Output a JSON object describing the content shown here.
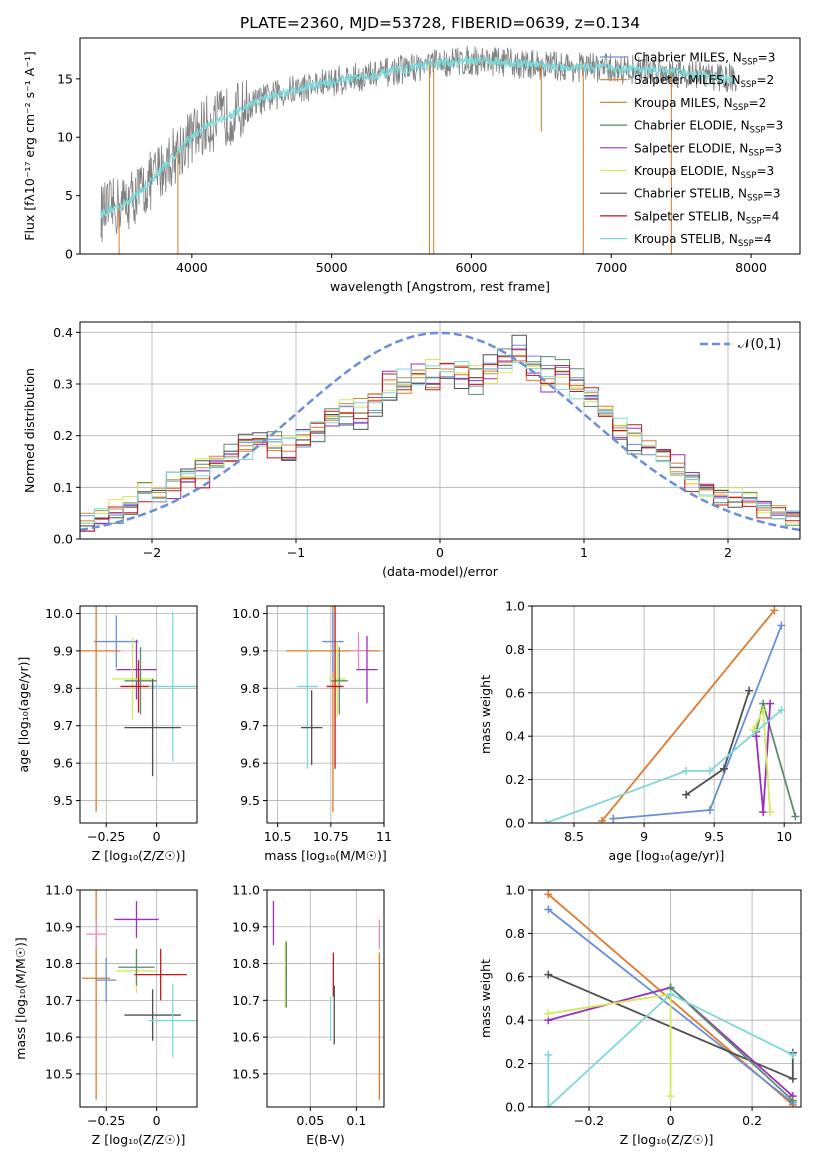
{
  "figure_title": "PLATE=2360, MJD=53728, FIBERID=0639, z=0.134",
  "models": [
    {
      "name": "Chabrier MILES",
      "color": "#6a8fd8",
      "nssp": "3"
    },
    {
      "name": "Salpeter MILES",
      "color": "#e07a2a",
      "nssp": "2"
    },
    {
      "name": "Kroupa MILES",
      "color": "#c09040",
      "nssp": "2"
    },
    {
      "name": "Chabrier ELODIE",
      "color": "#5c8c6e",
      "nssp": "3"
    },
    {
      "name": "Salpeter ELODIE",
      "color": "#9b2fc0",
      "nssp": "3"
    },
    {
      "name": "Kroupa ELODIE",
      "color": "#d6e85c",
      "nssp": "3"
    },
    {
      "name": "Chabrier STELIB",
      "color": "#505050",
      "nssp": "3"
    },
    {
      "name": "Salpeter STELIB",
      "color": "#c41818",
      "nssp": "4"
    },
    {
      "name": "Kroupa STELIB",
      "color": "#7fd8d8",
      "nssp": "4"
    }
  ],
  "chart_data": [
    {
      "id": "spectrum",
      "type": "line",
      "xlabel": "wavelength [Angstrom, rest frame]",
      "ylabel": "Flux [fλ10⁻¹⁷ erg cm⁻² s⁻¹ A⁻¹]",
      "xlim": [
        3200,
        8350
      ],
      "ylim": [
        0,
        18.5
      ],
      "xticks": [
        4000,
        5000,
        6000,
        7000,
        8000
      ],
      "yticks": [
        0,
        5,
        10,
        15
      ],
      "legend_position": "right",
      "observed_color": "#808080",
      "model_color": "#7fd8d8",
      "continuum": {
        "x": [
          3350,
          3500,
          3650,
          3800,
          3950,
          4100,
          4300,
          4500,
          4700,
          4900,
          5100,
          5300,
          5500,
          5700,
          5900,
          6100,
          6300,
          6500,
          6700,
          6900,
          7100,
          7300,
          7500,
          7700,
          7900
        ],
        "y": [
          3.5,
          4.2,
          5.5,
          7.5,
          9.5,
          11.0,
          12.0,
          13.2,
          14.0,
          14.5,
          15.0,
          15.3,
          15.8,
          16.2,
          16.5,
          16.6,
          16.3,
          16.2,
          16.0,
          16.0,
          15.8,
          15.8,
          15.5,
          15.2,
          15.0
        ]
      },
      "spikes_down": [
        [
          3480,
          0
        ],
        [
          3900,
          0
        ],
        [
          5700,
          0
        ],
        [
          5730,
          0
        ],
        [
          6500,
          10.5
        ],
        [
          6800,
          0
        ],
        [
          7430,
          0
        ]
      ]
    },
    {
      "id": "residual_hist",
      "type": "line",
      "xlabel": "(data-model)/error",
      "ylabel": "Normed distribution",
      "xlim": [
        -2.5,
        2.5
      ],
      "ylim": [
        0,
        0.42
      ],
      "xticks": [
        -2,
        -1,
        0,
        1,
        2
      ],
      "yticks": [
        0.0,
        0.1,
        0.2,
        0.3,
        0.4
      ],
      "grid": true,
      "legend_position": "top-right",
      "reference_curve": "𝒩(0,1)",
      "bin_edges_start": -2.5,
      "bin_width": 0.1,
      "series": [
        {
          "values": [
            0.045,
            0.041,
            0.046,
            0.067,
            0.091,
            0.094,
            0.112,
            0.131,
            0.132,
            0.152,
            0.164,
            0.187,
            0.188,
            0.193,
            0.152,
            0.178,
            0.189,
            0.233,
            0.22,
            0.226,
            0.249,
            0.269,
            0.298,
            0.302,
            0.313,
            0.314,
            0.311,
            0.296,
            0.34,
            0.355,
            0.375,
            0.354,
            0.336,
            0.332,
            0.312,
            0.275,
            0.248,
            0.21,
            0.183,
            0.163,
            0.152,
            0.126,
            0.12,
            0.103,
            0.081,
            0.072,
            0.079,
            0.065,
            0.049,
            0.043
          ]
        },
        {
          "values": [
            0.035,
            0.039,
            0.05,
            0.061,
            0.091,
            0.081,
            0.098,
            0.11,
            0.117,
            0.16,
            0.15,
            0.173,
            0.186,
            0.171,
            0.17,
            0.192,
            0.216,
            0.23,
            0.245,
            0.244,
            0.281,
            0.308,
            0.282,
            0.327,
            0.293,
            0.329,
            0.318,
            0.312,
            0.325,
            0.342,
            0.366,
            0.307,
            0.302,
            0.325,
            0.297,
            0.283,
            0.257,
            0.209,
            0.204,
            0.19,
            0.169,
            0.147,
            0.107,
            0.095,
            0.085,
            0.081,
            0.079,
            0.056,
            0.052,
            0.047
          ]
        },
        {
          "values": [
            0.05,
            0.055,
            0.058,
            0.07,
            0.088,
            0.09,
            0.115,
            0.118,
            0.138,
            0.155,
            0.16,
            0.17,
            0.192,
            0.2,
            0.182,
            0.202,
            0.226,
            0.238,
            0.262,
            0.272,
            0.28,
            0.3,
            0.312,
            0.312,
            0.33,
            0.34,
            0.335,
            0.33,
            0.32,
            0.33,
            0.345,
            0.335,
            0.31,
            0.3,
            0.29,
            0.27,
            0.24,
            0.215,
            0.2,
            0.18,
            0.16,
            0.13,
            0.115,
            0.1,
            0.09,
            0.08,
            0.07,
            0.06,
            0.052,
            0.045
          ]
        }
      ]
    },
    {
      "id": "age_vs_Z",
      "type": "scatter",
      "xlabel": "Z [log₁₀(Z/Z☉)]",
      "ylabel": "age  [log₁₀(age/yr)]",
      "xlim": [
        -0.38,
        0.2
      ],
      "ylim": [
        9.44,
        10.02
      ],
      "xticks": [
        -0.25,
        0.0
      ],
      "yticks": [
        9.5,
        9.6,
        9.7,
        9.8,
        9.9,
        10.0
      ],
      "grid": true,
      "points": [
        {
          "x": -0.2,
          "y": 9.925,
          "xerr": 0.11,
          "yerr": 0.07,
          "color": "#6a8fd8"
        },
        {
          "x": -0.3,
          "y": 9.9,
          "xerr": 0.12,
          "yerr": 0.43,
          "color": "#e07a2a"
        },
        {
          "x": -0.1,
          "y": 9.85,
          "xerr": 0.1,
          "yerr": 0.08,
          "color": "#9b2fc0"
        },
        {
          "x": -0.12,
          "y": 9.825,
          "xerr": 0.1,
          "yerr": 0.11,
          "color": "#d6e85c"
        },
        {
          "x": -0.08,
          "y": 9.82,
          "xerr": 0.08,
          "yerr": 0.09,
          "color": "#5c8c6e"
        },
        {
          "x": -0.09,
          "y": 9.805,
          "xerr": 0.09,
          "yerr": 0.07,
          "color": "#c41818"
        },
        {
          "x": 0.08,
          "y": 9.805,
          "xerr": 0.12,
          "yerr": 0.2,
          "color": "#7fd8d8"
        },
        {
          "x": -0.02,
          "y": 9.695,
          "xerr": 0.14,
          "yerr": 0.13,
          "color": "#505050"
        }
      ]
    },
    {
      "id": "age_vs_mass",
      "type": "scatter",
      "xlabel": "mass [log₁₀(M/M☉)]",
      "ylabel": "",
      "xlim": [
        10.45,
        11.0
      ],
      "ylim": [
        9.44,
        10.02
      ],
      "xticks": [
        10.5,
        10.75,
        11.0
      ],
      "yticks": [
        9.5,
        9.6,
        9.7,
        9.8,
        9.9,
        10.0
      ],
      "grid": true,
      "points": [
        {
          "x": 10.76,
          "y": 9.9,
          "xerr": 0.22,
          "yerr": 0.43,
          "color": "#e07a2a"
        },
        {
          "x": 10.76,
          "y": 9.925,
          "xerr": 0.05,
          "yerr": 0.08,
          "color": "#6a8fd8"
        },
        {
          "x": 10.88,
          "y": 9.9,
          "xerr": 0.04,
          "yerr": 0.05,
          "color": "#e889c0"
        },
        {
          "x": 10.92,
          "y": 9.85,
          "xerr": 0.05,
          "yerr": 0.09,
          "color": "#9b2fc0"
        },
        {
          "x": 10.78,
          "y": 9.825,
          "xerr": 0.04,
          "yerr": 0.1,
          "color": "#d6e85c"
        },
        {
          "x": 10.79,
          "y": 9.82,
          "xerr": 0.04,
          "yerr": 0.09,
          "color": "#5c8c6e"
        },
        {
          "x": 10.77,
          "y": 9.805,
          "xerr": 0.04,
          "yerr": 0.22,
          "color": "#c41818"
        },
        {
          "x": 10.64,
          "y": 9.805,
          "xerr": 0.05,
          "yerr": 0.22,
          "color": "#7fd8d8"
        },
        {
          "x": 10.66,
          "y": 9.695,
          "xerr": 0.05,
          "yerr": 0.1,
          "color": "#505050"
        }
      ]
    },
    {
      "id": "weight_vs_age",
      "type": "line",
      "xlabel": "age  [log₁₀(age/yr)]",
      "ylabel": "mass weight",
      "xlim": [
        8.2,
        10.12
      ],
      "ylim": [
        0,
        1.0
      ],
      "xticks": [
        8.5,
        9.0,
        9.5,
        10.0
      ],
      "yticks": [
        0.0,
        0.2,
        0.4,
        0.6,
        0.8,
        1.0
      ],
      "grid": true,
      "series": [
        {
          "color": "#e07a2a",
          "x": [
            8.7,
            9.93
          ],
          "y": [
            0.01,
            0.98
          ]
        },
        {
          "color": "#6a8fd8",
          "x": [
            8.78,
            9.47,
            9.98
          ],
          "y": [
            0.02,
            0.06,
            0.91
          ]
        },
        {
          "color": "#5c8c6e",
          "x": [
            9.8,
            9.85,
            10.08
          ],
          "y": [
            0.42,
            0.55,
            0.03
          ]
        },
        {
          "color": "#9b2fc0",
          "x": [
            9.8,
            9.85,
            9.9
          ],
          "y": [
            0.4,
            0.05,
            0.55
          ]
        },
        {
          "color": "#d6e85c",
          "x": [
            9.78,
            9.85,
            9.9
          ],
          "y": [
            0.43,
            0.52,
            0.05
          ]
        },
        {
          "color": "#505050",
          "x": [
            9.3,
            9.57,
            9.75
          ],
          "y": [
            0.13,
            0.25,
            0.61
          ]
        },
        {
          "color": "#7fd8d8",
          "x": [
            8.3,
            9.3,
            9.47,
            9.98
          ],
          "y": [
            0.0,
            0.24,
            0.24,
            0.52
          ]
        }
      ]
    },
    {
      "id": "mass_vs_Z",
      "type": "scatter",
      "xlabel": "Z [log₁₀(Z/Z☉)]",
      "ylabel": "mass [log₁₀(M/M☉)]",
      "xlim": [
        -0.38,
        0.2
      ],
      "ylim": [
        10.41,
        11.0
      ],
      "xticks": [
        -0.25,
        0.0
      ],
      "yticks": [
        10.5,
        10.6,
        10.7,
        10.8,
        10.9,
        11.0
      ],
      "grid": true,
      "points": [
        {
          "x": -0.3,
          "y": 10.76,
          "xerr": 0.07,
          "yerr": 0.33,
          "color": "#e07a2a"
        },
        {
          "x": -0.3,
          "y": 10.88,
          "xerr": 0.05,
          "yerr": 0.04,
          "color": "#e889c0"
        },
        {
          "x": -0.1,
          "y": 10.92,
          "xerr": 0.11,
          "yerr": 0.05,
          "color": "#9b2fc0"
        },
        {
          "x": -0.25,
          "y": 10.755,
          "xerr": 0.05,
          "yerr": 0.06,
          "color": "#6a8fd8"
        },
        {
          "x": -0.1,
          "y": 10.78,
          "xerr": 0.1,
          "yerr": 0.06,
          "color": "#d6e85c"
        },
        {
          "x": -0.1,
          "y": 10.79,
          "xerr": 0.09,
          "yerr": 0.05,
          "color": "#5c8c6e"
        },
        {
          "x": 0.02,
          "y": 10.77,
          "xerr": 0.13,
          "yerr": 0.07,
          "color": "#c41818"
        },
        {
          "x": -0.02,
          "y": 10.66,
          "xerr": 0.14,
          "yerr": 0.07,
          "color": "#505050"
        },
        {
          "x": 0.08,
          "y": 10.645,
          "xerr": 0.12,
          "yerr": 0.1,
          "color": "#7fd8d8"
        }
      ]
    },
    {
      "id": "mass_vs_ebv",
      "type": "scatter",
      "xlabel": "E(B-V)",
      "ylabel": "",
      "xlim": [
        0.003,
        0.13
      ],
      "ylim": [
        10.41,
        11.0
      ],
      "xticks": [
        0.05,
        0.1
      ],
      "yticks": [
        10.5,
        10.6,
        10.7,
        10.8,
        10.9,
        11.0
      ],
      "grid": true,
      "points": [
        {
          "x": 0.01,
          "y": 10.91,
          "xerr": 0,
          "yerr": 0.06,
          "color": "#9b2fc0"
        },
        {
          "x": 0.023,
          "y": 10.77,
          "xerr": 0,
          "yerr": 0.09,
          "color": "#d6e85c"
        },
        {
          "x": 0.024,
          "y": 10.77,
          "xerr": 0,
          "yerr": 0.09,
          "color": "#5c8c6e"
        },
        {
          "x": 0.075,
          "y": 10.77,
          "xerr": 0,
          "yerr": 0.06,
          "color": "#c41818"
        },
        {
          "x": 0.072,
          "y": 10.65,
          "xerr": 0,
          "yerr": 0.06,
          "color": "#7fd8d8"
        },
        {
          "x": 0.076,
          "y": 10.66,
          "xerr": 0,
          "yerr": 0.08,
          "color": "#505050"
        },
        {
          "x": 0.125,
          "y": 10.88,
          "xerr": 0,
          "yerr": 0.04,
          "color": "#e889c0"
        },
        {
          "x": 0.125,
          "y": 10.63,
          "xerr": 0,
          "yerr": 0.2,
          "color": "#e07a2a"
        }
      ]
    },
    {
      "id": "weight_vs_Z",
      "type": "line",
      "xlabel": "Z [log₁₀(Z/Z☉)]",
      "ylabel": "mass weight",
      "xlim": [
        -0.34,
        0.32
      ],
      "ylim": [
        0,
        1.0
      ],
      "xticks": [
        -0.2,
        0.0,
        0.2
      ],
      "yticks": [
        0.0,
        0.2,
        0.4,
        0.6,
        0.8,
        1.0
      ],
      "grid": true,
      "series": [
        {
          "color": "#e07a2a",
          "x": [
            -0.3,
            0.3
          ],
          "y": [
            0.98,
            0.01
          ]
        },
        {
          "color": "#6a8fd8",
          "x": [
            -0.3,
            0.3
          ],
          "y": [
            0.91,
            0.02
          ]
        },
        {
          "color": "#505050",
          "x": [
            -0.3,
            0.3,
            0.3
          ],
          "y": [
            0.61,
            0.13,
            0.25
          ]
        },
        {
          "color": "#9b2fc0",
          "x": [
            -0.3,
            0.0,
            0.3
          ],
          "y": [
            0.4,
            0.55,
            0.05
          ]
        },
        {
          "color": "#5c8c6e",
          "x": [
            0.0,
            0.3
          ],
          "y": [
            0.55,
            0.03
          ]
        },
        {
          "color": "#d6e85c",
          "x": [
            -0.3,
            0.0,
            0.0
          ],
          "y": [
            0.43,
            0.52,
            0.05
          ]
        },
        {
          "color": "#7fd8d8",
          "x": [
            -0.3,
            -0.3,
            0.0,
            0.3
          ],
          "y": [
            0.24,
            0.0,
            0.52,
            0.24
          ]
        }
      ]
    }
  ]
}
